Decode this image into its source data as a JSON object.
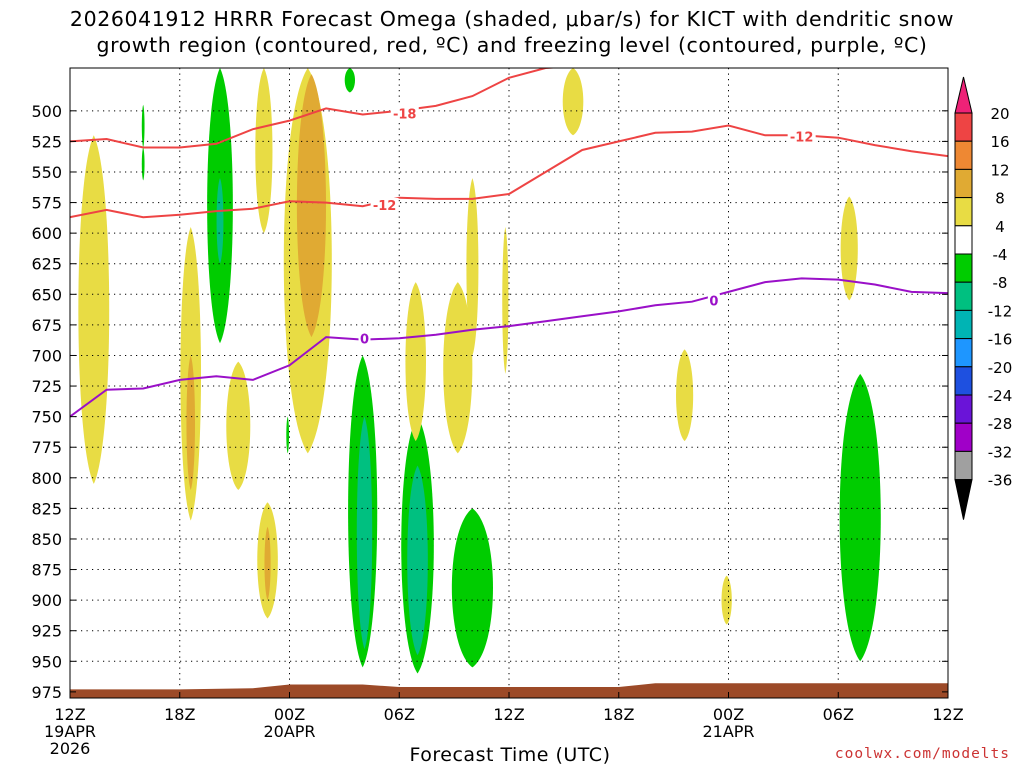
{
  "title": {
    "line1": "2026041912 HRRR Forecast Omega (shaded, μbar/s) for KICT with dendritic snow",
    "line2": "growth region (contoured, red, ºC) and freezing level (contoured, purple, ºC)"
  },
  "credit": "coolwx.com/modelts",
  "chart_data": {
    "type": "heatmap",
    "title": "2026041912 HRRR Forecast Omega (shaded, μbar/s) for KICT with dendritic snow growth region (contoured, red, ºC) and freezing level (contoured, purple, ºC)",
    "xlabel": "Forecast Time (UTC)",
    "ylabel": "",
    "x_range_hours": [
      0,
      48
    ],
    "y_range_hPa": [
      465,
      980
    ],
    "grid": true,
    "y_ticks": [
      "500",
      "525",
      "550",
      "575",
      "600",
      "625",
      "650",
      "675",
      "700",
      "725",
      "750",
      "775",
      "800",
      "825",
      "850",
      "875",
      "900",
      "925",
      "950",
      "975"
    ],
    "x_ticks": [
      {
        "hour": 0,
        "label": "12Z",
        "sub": "19APR",
        "sub2": "2026"
      },
      {
        "hour": 6,
        "label": "18Z"
      },
      {
        "hour": 12,
        "label": "00Z",
        "sub": "20APR"
      },
      {
        "hour": 18,
        "label": "06Z"
      },
      {
        "hour": 24,
        "label": "12Z"
      },
      {
        "hour": 30,
        "label": "18Z"
      },
      {
        "hour": 36,
        "label": "00Z",
        "sub": "21APR"
      },
      {
        "hour": 42,
        "label": "06Z"
      },
      {
        "hour": 48,
        "label": "12Z"
      }
    ],
    "colorbar": {
      "labels": [
        "20",
        "16",
        "12",
        "8",
        "4",
        "-4",
        "-8",
        "-12",
        "-16",
        "-20",
        "-24",
        "-28",
        "-32",
        "-36"
      ],
      "colors": [
        "#ee2277",
        "#ee4444",
        "#ee8833",
        "#e0aa33",
        "#e8dc44",
        "#ffffff",
        "#00cc00",
        "#00c080",
        "#00b4b4",
        "#1e96ff",
        "#1e50e0",
        "#6a14d8",
        "#a000c8",
        "#a0a0a0",
        "#000000"
      ]
    },
    "contour_labels": {
      "dgz_cold": "-18",
      "dgz_warm": "-12",
      "freezing": "0"
    },
    "dgz_minus18_line": [
      [
        0,
        525
      ],
      [
        2,
        523
      ],
      [
        4,
        530
      ],
      [
        6,
        530
      ],
      [
        8,
        527
      ],
      [
        10,
        515
      ],
      [
        12,
        508
      ],
      [
        14,
        498
      ],
      [
        16,
        503
      ],
      [
        18,
        500
      ],
      [
        20,
        496
      ],
      [
        22,
        488
      ],
      [
        24,
        473
      ],
      [
        26,
        465
      ],
      [
        28,
        463
      ],
      [
        30,
        462
      ]
    ],
    "dgz_minus12_line": [
      [
        0,
        587
      ],
      [
        2,
        581
      ],
      [
        4,
        587
      ],
      [
        6,
        585
      ],
      [
        8,
        582
      ],
      [
        10,
        580
      ],
      [
        12,
        574
      ],
      [
        14,
        575
      ],
      [
        16,
        578
      ],
      [
        18,
        571
      ],
      [
        20,
        572
      ],
      [
        22,
        572
      ],
      [
        24,
        568
      ],
      [
        26,
        550
      ],
      [
        28,
        532
      ],
      [
        30,
        525
      ],
      [
        32,
        518
      ],
      [
        34,
        517
      ],
      [
        36,
        512
      ],
      [
        38,
        520
      ],
      [
        40,
        520
      ],
      [
        42,
        522
      ],
      [
        44,
        528
      ],
      [
        46,
        533
      ],
      [
        48,
        537
      ]
    ],
    "freezing_line": [
      [
        0,
        750
      ],
      [
        2,
        728
      ],
      [
        4,
        727
      ],
      [
        6,
        720
      ],
      [
        8,
        717
      ],
      [
        10,
        720
      ],
      [
        12,
        708
      ],
      [
        14,
        685
      ],
      [
        16,
        687
      ],
      [
        18,
        686
      ],
      [
        20,
        683
      ],
      [
        22,
        679
      ],
      [
        24,
        676
      ],
      [
        26,
        672
      ],
      [
        28,
        668
      ],
      [
        30,
        664
      ],
      [
        32,
        659
      ],
      [
        34,
        656
      ],
      [
        36,
        648
      ],
      [
        38,
        640
      ],
      [
        40,
        637
      ],
      [
        42,
        638
      ],
      [
        44,
        642
      ],
      [
        46,
        648
      ],
      [
        48,
        649
      ]
    ],
    "omega_regions": [
      {
        "val": 4,
        "cx": 1.3,
        "top": 520,
        "bot": 805,
        "w": 0.9
      },
      {
        "val": 4,
        "cx": 6.6,
        "top": 595,
        "bot": 835,
        "w": 0.6
      },
      {
        "val": 8,
        "cx": 6.6,
        "top": 700,
        "bot": 810,
        "w": 0.25
      },
      {
        "val": -4,
        "cx": 4.0,
        "top": 495,
        "bot": 530,
        "w": 0.08
      },
      {
        "val": -4,
        "cx": 4.0,
        "top": 530,
        "bot": 557,
        "w": 0.08
      },
      {
        "val": -4,
        "cx": 8.2,
        "top": 465,
        "bot": 690,
        "w": 0.75
      },
      {
        "val": -8,
        "cx": 8.2,
        "top": 555,
        "bot": 625,
        "w": 0.2
      },
      {
        "val": 4,
        "cx": 9.2,
        "top": 705,
        "bot": 810,
        "w": 0.7
      },
      {
        "val": 4,
        "cx": 10.6,
        "top": 465,
        "bot": 600,
        "w": 0.5
      },
      {
        "val": 4,
        "cx": 13.0,
        "top": 465,
        "bot": 780,
        "w": 1.4
      },
      {
        "val": 8,
        "cx": 13.2,
        "top": 470,
        "bot": 685,
        "w": 0.85
      },
      {
        "val": -4,
        "cx": 15.3,
        "top": 465,
        "bot": 485,
        "w": 0.3
      },
      {
        "val": 4,
        "cx": 10.8,
        "top": 820,
        "bot": 915,
        "w": 0.6
      },
      {
        "val": 8,
        "cx": 10.8,
        "top": 840,
        "bot": 900,
        "w": 0.18
      },
      {
        "val": -4,
        "cx": 11.9,
        "top": 750,
        "bot": 780,
        "w": 0.08
      },
      {
        "val": -4,
        "cx": 16.0,
        "top": 700,
        "bot": 955,
        "w": 0.85
      },
      {
        "val": -8,
        "cx": 16.1,
        "top": 750,
        "bot": 940,
        "w": 0.45
      },
      {
        "val": -4,
        "cx": 19.0,
        "top": 750,
        "bot": 960,
        "w": 0.95
      },
      {
        "val": -8,
        "cx": 19.0,
        "top": 790,
        "bot": 945,
        "w": 0.6
      },
      {
        "val": 4,
        "cx": 18.9,
        "top": 640,
        "bot": 770,
        "w": 0.6
      },
      {
        "val": 4,
        "cx": 21.2,
        "top": 640,
        "bot": 780,
        "w": 0.85
      },
      {
        "val": 4,
        "cx": 22.0,
        "top": 555,
        "bot": 700,
        "w": 0.35
      },
      {
        "val": 4,
        "cx": 23.8,
        "top": 595,
        "bot": 715,
        "w": 0.18
      },
      {
        "val": -4,
        "cx": 22.0,
        "top": 825,
        "bot": 955,
        "w": 1.2
      },
      {
        "val": 4,
        "cx": 27.5,
        "top": 465,
        "bot": 520,
        "w": 0.6
      },
      {
        "val": 4,
        "cx": 33.6,
        "top": 695,
        "bot": 770,
        "w": 0.5
      },
      {
        "val": 4,
        "cx": 35.9,
        "top": 880,
        "bot": 920,
        "w": 0.3
      },
      {
        "val": 4,
        "cx": 42.6,
        "top": 570,
        "bot": 655,
        "w": 0.5
      },
      {
        "val": -4,
        "cx": 43.2,
        "top": 715,
        "bot": 950,
        "w": 1.2
      }
    ]
  }
}
